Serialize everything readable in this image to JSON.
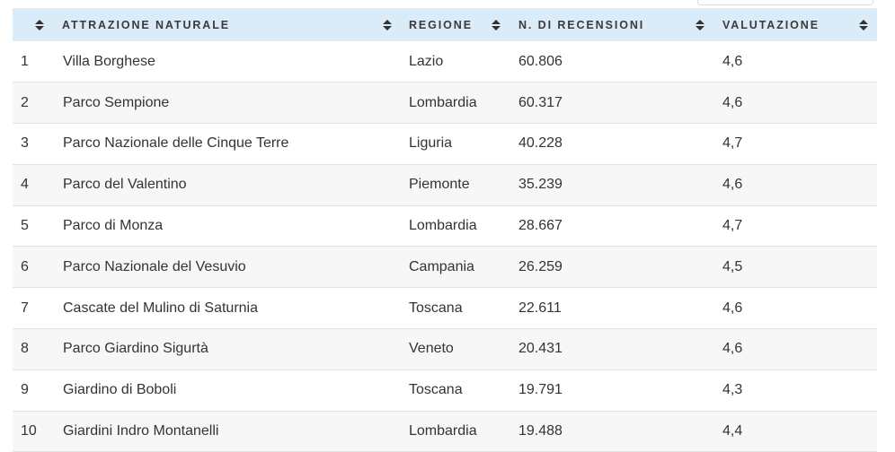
{
  "table": {
    "headers": [
      "ATTRAZIONE NATURALE",
      "REGIONE",
      "N. DI RECENSIONI",
      "VALUTAZIONE"
    ],
    "rows": [
      [
        "1",
        "Villa Borghese",
        "Lazio",
        "60.806",
        "4,6"
      ],
      [
        "2",
        "Parco Sempione",
        "Lombardia",
        "60.317",
        "4,6"
      ],
      [
        "3",
        "Parco Nazionale delle Cinque Terre",
        "Liguria",
        "40.228",
        "4,7"
      ],
      [
        "4",
        "Parco del Valentino",
        "Piemonte",
        "35.239",
        "4,6"
      ],
      [
        "5",
        "Parco di Monza",
        "Lombardia",
        "28.667",
        "4,7"
      ],
      [
        "6",
        "Parco Nazionale del Vesuvio",
        "Campania",
        "26.259",
        "4,5"
      ],
      [
        "7",
        "Cascate del Mulino di Saturnia",
        "Toscana",
        "22.611",
        "4,6"
      ],
      [
        "8",
        "Parco Giardino Sigurtà",
        "Veneto",
        "20.431",
        "4,6"
      ],
      [
        "9",
        "Giardino di Boboli",
        "Toscana",
        "19.791",
        "4,3"
      ],
      [
        "10",
        "Giardini Indro Montanelli",
        "Lombardia",
        "19.488",
        "4,4"
      ]
    ]
  },
  "icons": {
    "sort": "sort-arrows-icon"
  },
  "colors": {
    "header_bg": "#d9ecf8",
    "stripe_bg": "#f7f7f7"
  }
}
